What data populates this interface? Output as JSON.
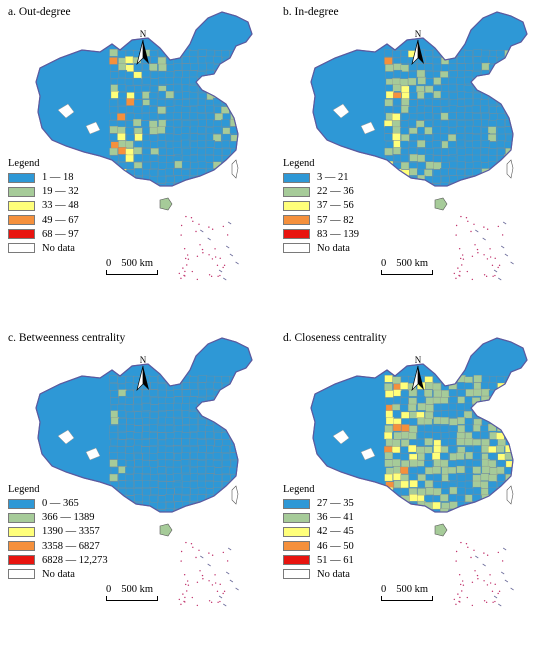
{
  "panels": [
    {
      "title": "a. Out-degree",
      "legend_title": "Legend",
      "classes": [
        {
          "label": "1 — 18",
          "color": "#2e98d6"
        },
        {
          "label": "19 — 32",
          "color": "#a6cb99"
        },
        {
          "label": "33 — 48",
          "color": "#ffff7a"
        },
        {
          "label": "49 — 67",
          "color": "#f5903c"
        },
        {
          "label": "68 — 97",
          "color": "#e8140f"
        },
        {
          "label": "No data",
          "color": "#ffffff"
        }
      ],
      "fill_mix": [
        0.55,
        0.18,
        0.12,
        0.1,
        0.05
      ]
    },
    {
      "title": "b. In-degree",
      "legend_title": "Legend",
      "classes": [
        {
          "label": "3 — 21",
          "color": "#2e98d6"
        },
        {
          "label": "22 — 36",
          "color": "#a6cb99"
        },
        {
          "label": "37 — 56",
          "color": "#ffff7a"
        },
        {
          "label": "57 — 82",
          "color": "#f5903c"
        },
        {
          "label": "83 — 139",
          "color": "#e8140f"
        },
        {
          "label": "No data",
          "color": "#ffffff"
        }
      ],
      "fill_mix": [
        0.55,
        0.2,
        0.12,
        0.09,
        0.04
      ]
    },
    {
      "title": "c. Betweenness centrality",
      "legend_title": "Legend",
      "classes": [
        {
          "label": "0 — 365",
          "color": "#2e98d6"
        },
        {
          "label": "366 — 1389",
          "color": "#a6cb99"
        },
        {
          "label": "1390 — 3357",
          "color": "#ffff7a"
        },
        {
          "label": "3358 — 6827",
          "color": "#f5903c"
        },
        {
          "label": "6828 — 12,273",
          "color": "#e8140f"
        },
        {
          "label": "No data",
          "color": "#ffffff"
        }
      ],
      "fill_mix": [
        0.82,
        0.1,
        0.04,
        0.02,
        0.02
      ]
    },
    {
      "title": "d. Closeness centrality",
      "legend_title": "Legend",
      "classes": [
        {
          "label": "27 — 35",
          "color": "#2e98d6"
        },
        {
          "label": "36 — 41",
          "color": "#a6cb99"
        },
        {
          "label": "42 — 45",
          "color": "#ffff7a"
        },
        {
          "label": "46 — 50",
          "color": "#f5903c"
        },
        {
          "label": "51 — 61",
          "color": "#e8140f"
        },
        {
          "label": "No data",
          "color": "#ffffff"
        }
      ],
      "fill_mix": [
        0.3,
        0.3,
        0.2,
        0.14,
        0.06
      ]
    }
  ],
  "scale": {
    "zero": "0",
    "distance": "500 km"
  },
  "north_label": "N"
}
